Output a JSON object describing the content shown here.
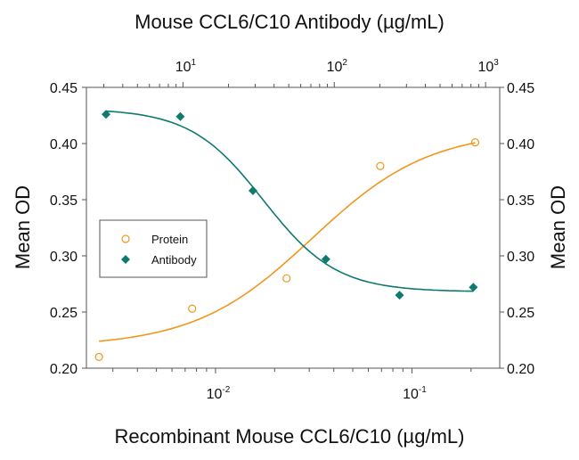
{
  "chart_data": {
    "type": "scatter",
    "title": "",
    "top_xlabel": "Mouse CCL6/C10 Antibody (µg/mL)",
    "bottom_xlabel": "Recombinant Mouse CCL6/C10 (µg/mL)",
    "ylabel_left": "Mean OD",
    "ylabel_right": "Mean OD",
    "x_scale": "log",
    "bottom_xlim": [
      0.0022,
      0.28
    ],
    "top_xlim": [
      2.3,
      1240
    ],
    "ylim": [
      0.2,
      0.45
    ],
    "y_ticks": [
      "0.20",
      "0.25",
      "0.30",
      "0.35",
      "0.40",
      "0.45"
    ],
    "bottom_x_ticks": [
      {
        "base": "10",
        "exp": "-2"
      },
      {
        "base": "10",
        "exp": "-1"
      }
    ],
    "top_x_ticks": [
      {
        "base": "10",
        "exp": "1"
      },
      {
        "base": "10",
        "exp": "2"
      },
      {
        "base": "10",
        "exp": "3"
      }
    ],
    "grid": false,
    "legend_placement": "center-left",
    "series": [
      {
        "name": "Protein",
        "axis": "bottom",
        "marker": "open-circle",
        "color": "#f0961e",
        "x": [
          0.00255,
          0.0076,
          0.023,
          0.069,
          0.21
        ],
        "y": [
          0.21,
          0.253,
          0.28,
          0.38,
          0.401
        ],
        "fit": {
          "bottom": 0.219,
          "top": 0.412,
          "ec50": 0.031,
          "hill": 1.45
        }
      },
      {
        "name": "Antibody",
        "axis": "top",
        "marker": "filled-diamond",
        "color": "#0f7a6e",
        "x": [
          3.1,
          9.6,
          29,
          88,
          270,
          830
        ],
        "y": [
          0.426,
          0.424,
          0.358,
          0.297,
          0.265,
          0.272
        ],
        "fit": {
          "bottom": 0.268,
          "top": 0.431,
          "ec50": 34,
          "hill": 1.8
        }
      }
    ]
  }
}
